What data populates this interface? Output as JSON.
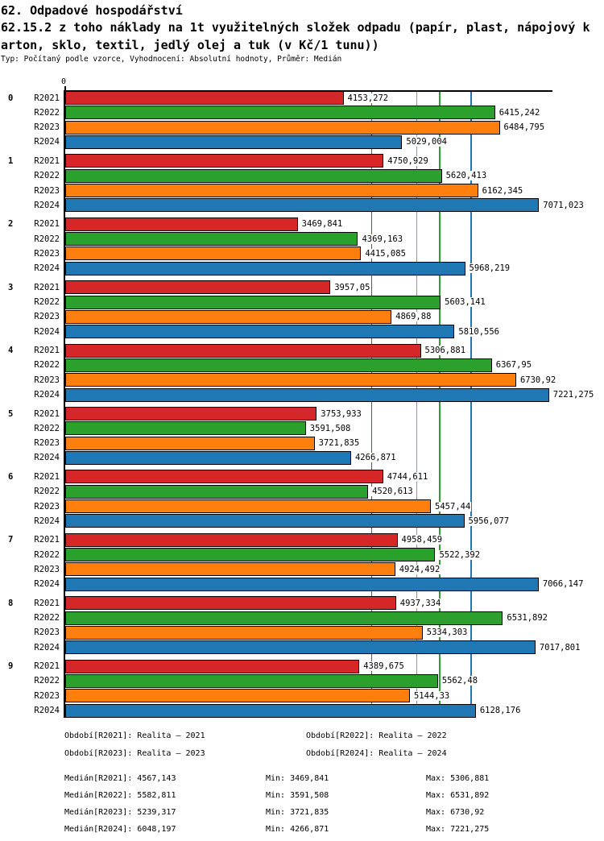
{
  "header": {
    "title": "62. Odpadové hospodářství",
    "subtitle_line1": "62.15.2 z toho náklady na 1t využitelných složek odpadu (papír, plast, nápojový k",
    "subtitle_line2": "arton, sklo, textil, jedlý olej a tuk (v Kč/1 tunu))",
    "meta": "Typ: Počítaný podle vzorce, Vyhodnocení: Absolutní hodnoty, Průměr: Medián"
  },
  "chart_data": {
    "type": "bar",
    "orientation": "horizontal",
    "unit": "Kč/1 tunu",
    "title": "62.15.2 z toho náklady na 1t využitelných složek odpadu (papír, plast, nápojový karton, sklo, textil, jedlý olej a tuk (v Kč/1 tunu))",
    "axis": {
      "tick_label": "0",
      "xmin": 0,
      "xmax_value": 7260,
      "gridlines": false
    },
    "series": [
      {
        "label": "R2021",
        "color": "#d62728",
        "legend": "Realita – 2021"
      },
      {
        "label": "R2022",
        "color": "#2ca02c",
        "legend": "Realita – 2022"
      },
      {
        "label": "R2023",
        "color": "#ff7f0e",
        "legend": "Realita – 2023"
      },
      {
        "label": "R2024",
        "color": "#1f77b4",
        "legend": "Realita – 2024"
      }
    ],
    "groups": [
      {
        "label": "0",
        "values": [
          4153.272,
          6415.242,
          6484.795,
          5029.004
        ],
        "value_labels": [
          "4153,272",
          "6415,242",
          "6484,795",
          "5029,004"
        ]
      },
      {
        "label": "1",
        "values": [
          4750.929,
          5620.413,
          6162.345,
          7071.023
        ],
        "value_labels": [
          "4750,929",
          "5620,413",
          "6162,345",
          "7071,023"
        ]
      },
      {
        "label": "2",
        "values": [
          3469.841,
          4369.163,
          4415.085,
          5968.219
        ],
        "value_labels": [
          "3469,841",
          "4369,163",
          "4415,085",
          "5968,219"
        ]
      },
      {
        "label": "3",
        "values": [
          3957.05,
          5603.141,
          4869.88,
          5810.556
        ],
        "value_labels": [
          "3957,05",
          "5603,141",
          "4869,88",
          "5810,556"
        ]
      },
      {
        "label": "4",
        "values": [
          5306.881,
          6367.95,
          6730.92,
          7221.275
        ],
        "value_labels": [
          "5306,881",
          "6367,95",
          "6730,92",
          "7221,275"
        ]
      },
      {
        "label": "5",
        "values": [
          3753.933,
          3591.508,
          3721.835,
          4266.871
        ],
        "value_labels": [
          "3753,933",
          "3591,508",
          "3721,835",
          "4266,871"
        ]
      },
      {
        "label": "6",
        "values": [
          4744.611,
          4520.613,
          5457.44,
          5956.077
        ],
        "value_labels": [
          "4744,611",
          "4520,613",
          "5457,44",
          "5956,077"
        ]
      },
      {
        "label": "7",
        "values": [
          4958.459,
          5522.392,
          4924.492,
          7066.147
        ],
        "value_labels": [
          "4958,459",
          "5522,392",
          "4924,492",
          "7066,147"
        ]
      },
      {
        "label": "8",
        "values": [
          4937.334,
          6531.892,
          5334.303,
          7017.801
        ],
        "value_labels": [
          "4937,334",
          "6531,892",
          "5334,303",
          "7017,801"
        ]
      },
      {
        "label": "9",
        "values": [
          4389.675,
          5562.48,
          5144.33,
          6128.176
        ],
        "value_labels": [
          "4389,675",
          "5562,48",
          "5144,33",
          "6128,176"
        ]
      }
    ],
    "median_lines": [
      {
        "series": "R2021",
        "value": 4567.143,
        "color": "#d62728"
      },
      {
        "series": "R2023",
        "value": 5239.317,
        "color": "#ff7f0e"
      },
      {
        "series": "R2022",
        "value": 5582.811,
        "color": "#2ca02c"
      },
      {
        "series": "R2024",
        "value": 6048.197,
        "color": "#1f77b4"
      }
    ]
  },
  "legend": {
    "items": [
      "Období[R2021]: Realita – 2021",
      "Období[R2022]: Realita – 2022",
      "Období[R2023]: Realita – 2023",
      "Období[R2024]: Realita – 2024"
    ]
  },
  "stats": {
    "rows": [
      {
        "median": "Medián[R2021]: 4567,143",
        "min": "Min: 3469,841",
        "max": "Max: 5306,881"
      },
      {
        "median": "Medián[R2022]: 5582,811",
        "min": "Min: 3591,508",
        "max": "Max: 6531,892"
      },
      {
        "median": "Medián[R2023]: 5239,317",
        "min": "Min: 3721,835",
        "max": "Max: 6730,92"
      },
      {
        "median": "Medián[R2024]: 6048,197",
        "min": "Min: 4266,871",
        "max": "Max: 7221,275"
      }
    ]
  }
}
